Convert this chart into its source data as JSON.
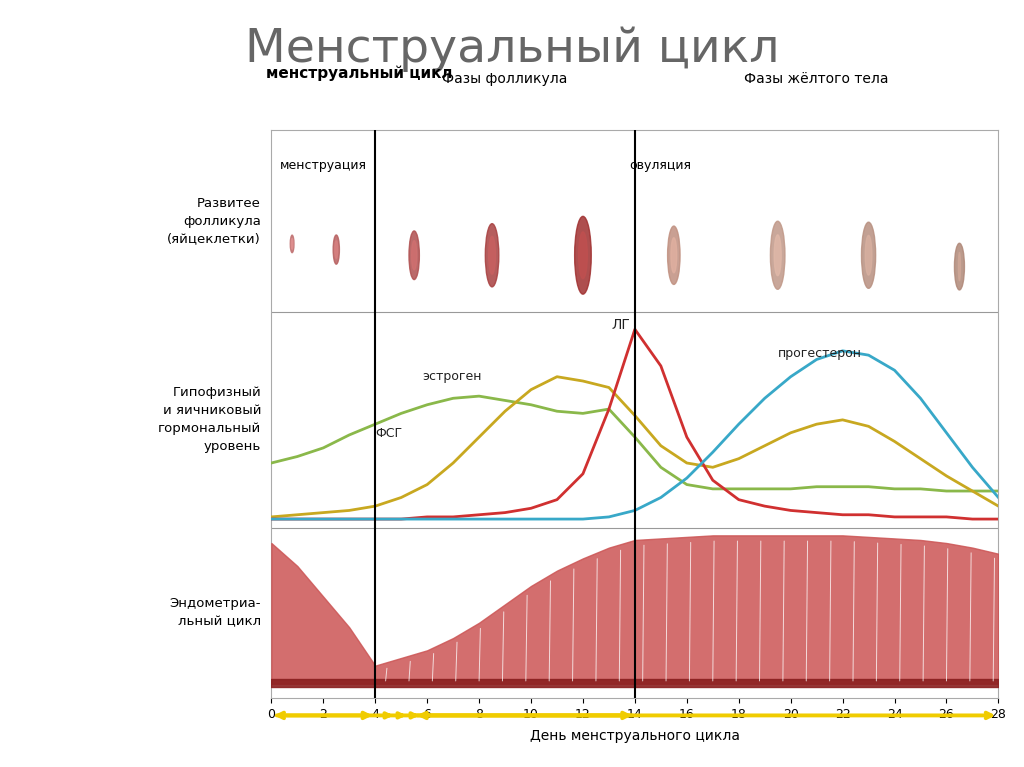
{
  "title": "Менструальный цикл",
  "subtitle": "менструальный цикл",
  "phase_follicle_label": "Фазы фолликула",
  "phase_luteal_label": "Фазы жёлтого тела",
  "menstruation_label": "менструация",
  "ovulation_label": "овуляция",
  "follicle_row_label": "Развитее\nфолликула\n(яйцеклетки)",
  "hormone_row_label": "Гипофизный\nи яичниковый\nгормональный\nуровень",
  "endometrial_row_label": "Эндометриа-\nльный цикл",
  "xlabel": "День менструального цикла",
  "fsg_label": "ФСГ",
  "estrogen_label": "эстроген",
  "lg_label": "ЛГ",
  "progesterone_label": "прогестерон",
  "x_ticks": [
    0,
    2,
    4,
    6,
    8,
    10,
    12,
    14,
    16,
    18,
    20,
    22,
    24,
    26,
    28
  ],
  "vline1": 4,
  "vline2": 14,
  "bg_color": "#ffffff",
  "fsg_color": "#8ab84a",
  "estrogen_color": "#c8a820",
  "lg_color": "#d03030",
  "progesterone_color": "#38a8c8",
  "endometrial_fill": "#cc5555",
  "endometrial_base": "#8b2020",
  "arrow_color": "#f0cc00",
  "x": [
    0,
    1,
    2,
    3,
    4,
    5,
    6,
    7,
    8,
    9,
    10,
    11,
    12,
    13,
    14,
    15,
    16,
    17,
    18,
    19,
    20,
    21,
    22,
    23,
    24,
    25,
    26,
    27,
    28
  ],
  "fsg": [
    0.3,
    0.33,
    0.37,
    0.43,
    0.48,
    0.53,
    0.57,
    0.6,
    0.61,
    0.59,
    0.57,
    0.54,
    0.53,
    0.55,
    0.42,
    0.28,
    0.2,
    0.18,
    0.18,
    0.18,
    0.18,
    0.19,
    0.19,
    0.19,
    0.18,
    0.18,
    0.17,
    0.17,
    0.17
  ],
  "estrogen": [
    0.05,
    0.06,
    0.07,
    0.08,
    0.1,
    0.14,
    0.2,
    0.3,
    0.42,
    0.54,
    0.64,
    0.7,
    0.68,
    0.65,
    0.52,
    0.38,
    0.3,
    0.28,
    0.32,
    0.38,
    0.44,
    0.48,
    0.5,
    0.47,
    0.4,
    0.32,
    0.24,
    0.17,
    0.1
  ],
  "lg": [
    0.04,
    0.04,
    0.04,
    0.04,
    0.04,
    0.04,
    0.05,
    0.05,
    0.06,
    0.07,
    0.09,
    0.13,
    0.25,
    0.55,
    0.92,
    0.75,
    0.42,
    0.22,
    0.13,
    0.1,
    0.08,
    0.07,
    0.06,
    0.06,
    0.05,
    0.05,
    0.05,
    0.04,
    0.04
  ],
  "progesterone": [
    0.04,
    0.04,
    0.04,
    0.04,
    0.04,
    0.04,
    0.04,
    0.04,
    0.04,
    0.04,
    0.04,
    0.04,
    0.04,
    0.05,
    0.08,
    0.14,
    0.23,
    0.35,
    0.48,
    0.6,
    0.7,
    0.78,
    0.82,
    0.8,
    0.73,
    0.6,
    0.44,
    0.28,
    0.14
  ],
  "endo_x": [
    0,
    1,
    2,
    3,
    4,
    5,
    6,
    7,
    8,
    9,
    10,
    11,
    12,
    13,
    14,
    15,
    16,
    17,
    18,
    19,
    20,
    21,
    22,
    23,
    24,
    25,
    26,
    27,
    28
  ],
  "endo_h": [
    0.9,
    0.75,
    0.55,
    0.35,
    0.1,
    0.15,
    0.2,
    0.28,
    0.38,
    0.5,
    0.62,
    0.72,
    0.8,
    0.87,
    0.92,
    0.93,
    0.94,
    0.95,
    0.95,
    0.95,
    0.95,
    0.95,
    0.95,
    0.94,
    0.93,
    0.92,
    0.9,
    0.87,
    0.83
  ]
}
